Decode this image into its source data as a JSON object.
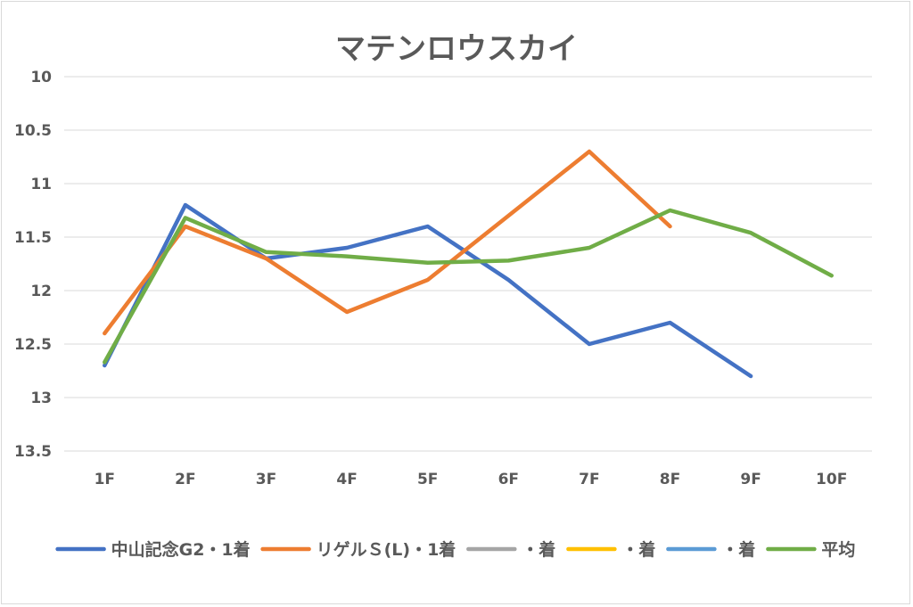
{
  "chart_data": {
    "type": "line",
    "title": "マテンロウスカイ",
    "categories": [
      "1F",
      "2F",
      "3F",
      "4F",
      "5F",
      "6F",
      "7F",
      "8F",
      "9F",
      "10F"
    ],
    "y_axis": {
      "reversed": true,
      "ylim": [
        10,
        13.5
      ],
      "ticks": [
        "10",
        "10.5",
        "11",
        "11.5",
        "12",
        "12.5",
        "13",
        "13.5"
      ],
      "tick_values": [
        10,
        10.5,
        11,
        11.5,
        12,
        12.5,
        13,
        13.5
      ]
    },
    "grid": true,
    "legend_position": "bottom",
    "series": [
      {
        "name": "中山記念G2・1着",
        "color": "#4472c4",
        "values": [
          12.7,
          11.2,
          11.7,
          11.6,
          11.4,
          11.9,
          12.5,
          12.3,
          12.8,
          null
        ]
      },
      {
        "name": "リゲルＳ(L)・1着",
        "color": "#ed7d31",
        "values": [
          12.4,
          11.4,
          11.7,
          12.2,
          11.9,
          11.3,
          10.7,
          11.4,
          null,
          null
        ]
      },
      {
        "name": "・着",
        "color": "#a5a5a5",
        "values": [
          null,
          null,
          null,
          null,
          null,
          null,
          null,
          null,
          null,
          null
        ]
      },
      {
        "name": "・着",
        "color": "#ffc000",
        "values": [
          null,
          null,
          null,
          null,
          null,
          null,
          null,
          null,
          null,
          null
        ]
      },
      {
        "name": "・着",
        "color": "#5b9bd5",
        "values": [
          null,
          null,
          null,
          null,
          null,
          null,
          null,
          null,
          null,
          null
        ]
      },
      {
        "name": "平均",
        "color": "#70ad47",
        "values": [
          12.67,
          11.32,
          11.64,
          11.68,
          11.74,
          11.72,
          11.6,
          11.25,
          11.46,
          11.86
        ]
      }
    ]
  }
}
